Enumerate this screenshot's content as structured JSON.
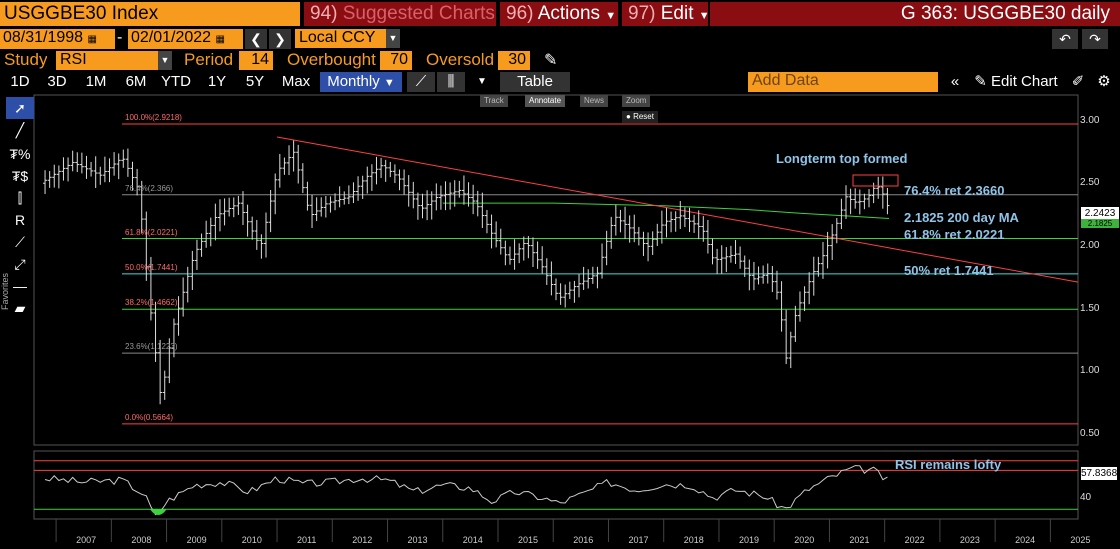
{
  "header": {
    "ticker": "USGGBE30 Index",
    "suggested_num": "94)",
    "suggested_label": "Suggested Charts",
    "actions_num": "96)",
    "actions_label": "Actions",
    "edit_num": "97)",
    "edit_label": "Edit",
    "chart_title": "G 363: USGGBE30 daily"
  },
  "dates": {
    "start": "08/31/1998",
    "end": "02/01/2022",
    "currency": "Local CCY"
  },
  "study": {
    "label": "Study",
    "name": "RSI",
    "period_label": "Period",
    "period": "14",
    "overbought_label": "Overbought",
    "overbought": "70",
    "oversold_label": "Oversold",
    "oversold": "30"
  },
  "range_tabs": [
    "1D",
    "3D",
    "1M",
    "6M",
    "YTD",
    "1Y",
    "5Y",
    "Max"
  ],
  "frequency": "Monthly",
  "table_label": "Table",
  "add_data_placeholder": "Add Data",
  "edit_chart_label": "Edit Chart",
  "mini_toolbar": [
    "Track",
    "Annotate",
    "News",
    "Zoom"
  ],
  "reset_label": "Reset",
  "favorites_label": "Favorites",
  "colors": {
    "orange": "#f79b1e",
    "maroon": "#8a0d12",
    "blue": "#2e4fa8",
    "annotation": "#8fc4e8"
  },
  "y_axis_ticks": [
    "3.00",
    "2.50",
    "2.00",
    "1.50",
    "1.00",
    "0.50"
  ],
  "last_price": "2.2423",
  "ma_price": "2.1825",
  "rsi_value": "57.8368",
  "rsi_tick": "40",
  "annotations": {
    "top": "Longterm top formed",
    "fib764": "76.4% ret 2.3660",
    "ma200": "2.1825 200 day MA",
    "fib618": "61.8% ret 2.0221",
    "fib50": "50% ret 1.7441",
    "rsi": "RSI remains lofty"
  },
  "fib_levels": [
    {
      "label": "100.0%(2.9218)",
      "value": 2.9218
    },
    {
      "label": "76.4%(2.366)",
      "value": 2.366
    },
    {
      "label": "61.8%(2.0221)",
      "value": 2.0221
    },
    {
      "label": "50.0%(1.7441)",
      "value": 1.7441
    },
    {
      "label": "38.2%(1.4662)",
      "value": 1.4662
    },
    {
      "label": "23.6%(1.1223)",
      "value": 1.1223
    },
    {
      "label": "0.0%(0.5664)",
      "value": 0.5664
    }
  ],
  "x_axis_years": [
    "2007",
    "2008",
    "2009",
    "2010",
    "2011",
    "2012",
    "2013",
    "2014",
    "2015",
    "2016",
    "2017",
    "2018",
    "2019",
    "2020",
    "2021",
    "2022",
    "2023",
    "2024",
    "2025"
  ],
  "chart_data": {
    "type": "line",
    "y_range": [
      0.4,
      3.15
    ],
    "x_range": [
      2006.6,
      2025.5
    ],
    "series": [
      {
        "values": [
          [
            2006.8,
            2.48
          ],
          [
            2007.3,
            2.62
          ],
          [
            2007.8,
            2.52
          ],
          [
            2008.2,
            2.66
          ],
          [
            2008.5,
            2.4
          ],
          [
            2008.7,
            1.5
          ],
          [
            2008.9,
            0.75
          ],
          [
            2009.1,
            1.3
          ],
          [
            2009.5,
            1.9
          ],
          [
            2009.9,
            2.2
          ],
          [
            2010.3,
            2.3
          ],
          [
            2010.7,
            1.95
          ],
          [
            2011.0,
            2.55
          ],
          [
            2011.3,
            2.7
          ],
          [
            2011.6,
            2.2
          ],
          [
            2011.9,
            2.3
          ],
          [
            2012.3,
            2.35
          ],
          [
            2012.6,
            2.5
          ],
          [
            2012.9,
            2.6
          ],
          [
            2013.2,
            2.5
          ],
          [
            2013.6,
            2.25
          ],
          [
            2013.9,
            2.35
          ],
          [
            2014.3,
            2.4
          ],
          [
            2014.6,
            2.3
          ],
          [
            2014.9,
            2.05
          ],
          [
            2015.2,
            1.85
          ],
          [
            2015.5,
            2.0
          ],
          [
            2015.8,
            1.8
          ],
          [
            2016.1,
            1.55
          ],
          [
            2016.4,
            1.65
          ],
          [
            2016.8,
            1.75
          ],
          [
            2017.1,
            2.2
          ],
          [
            2017.4,
            2.1
          ],
          [
            2017.7,
            1.95
          ],
          [
            2018.0,
            2.15
          ],
          [
            2018.3,
            2.2
          ],
          [
            2018.7,
            2.1
          ],
          [
            2018.9,
            1.85
          ],
          [
            2019.3,
            1.9
          ],
          [
            2019.6,
            1.7
          ],
          [
            2019.9,
            1.75
          ],
          [
            2020.1,
            1.55
          ],
          [
            2020.2,
            1.05
          ],
          [
            2020.4,
            1.45
          ],
          [
            2020.7,
            1.75
          ],
          [
            2020.9,
            1.9
          ],
          [
            2021.1,
            2.1
          ],
          [
            2021.3,
            2.35
          ],
          [
            2021.5,
            2.3
          ],
          [
            2021.7,
            2.35
          ],
          [
            2021.85,
            2.45
          ],
          [
            2022.0,
            2.35
          ],
          [
            2022.08,
            2.24
          ]
        ]
      }
    ],
    "rsi_range": [
      20,
      90
    ],
    "rsi_series": [
      [
        2006.8,
        62
      ],
      [
        2007.5,
        58
      ],
      [
        2008.2,
        60
      ],
      [
        2008.6,
        45
      ],
      [
        2008.8,
        22
      ],
      [
        2009.0,
        38
      ],
      [
        2009.5,
        55
      ],
      [
        2010.0,
        58
      ],
      [
        2010.5,
        48
      ],
      [
        2011.0,
        62
      ],
      [
        2011.5,
        56
      ],
      [
        2012.0,
        58
      ],
      [
        2012.5,
        62
      ],
      [
        2013.0,
        60
      ],
      [
        2013.5,
        48
      ],
      [
        2014.0,
        55
      ],
      [
        2014.5,
        52
      ],
      [
        2014.9,
        38
      ],
      [
        2015.3,
        48
      ],
      [
        2015.8,
        42
      ],
      [
        2016.1,
        36
      ],
      [
        2016.5,
        45
      ],
      [
        2017.0,
        58
      ],
      [
        2017.5,
        50
      ],
      [
        2018.0,
        56
      ],
      [
        2018.5,
        55
      ],
      [
        2018.9,
        42
      ],
      [
        2019.3,
        50
      ],
      [
        2019.8,
        44
      ],
      [
        2020.2,
        30
      ],
      [
        2020.6,
        50
      ],
      [
        2021.0,
        62
      ],
      [
        2021.4,
        72
      ],
      [
        2021.8,
        70
      ],
      [
        2022.08,
        58
      ]
    ],
    "ma200": [
      [
        2014.0,
        2.3
      ],
      [
        2016.0,
        2.3
      ],
      [
        2018.0,
        2.28
      ],
      [
        2019.5,
        2.25
      ],
      [
        2020.5,
        2.22
      ],
      [
        2021.3,
        2.2
      ],
      [
        2022.08,
        2.18
      ]
    ],
    "trendline": [
      [
        2011.0,
        2.82
      ],
      [
        2025.5,
        1.68
      ]
    ]
  }
}
